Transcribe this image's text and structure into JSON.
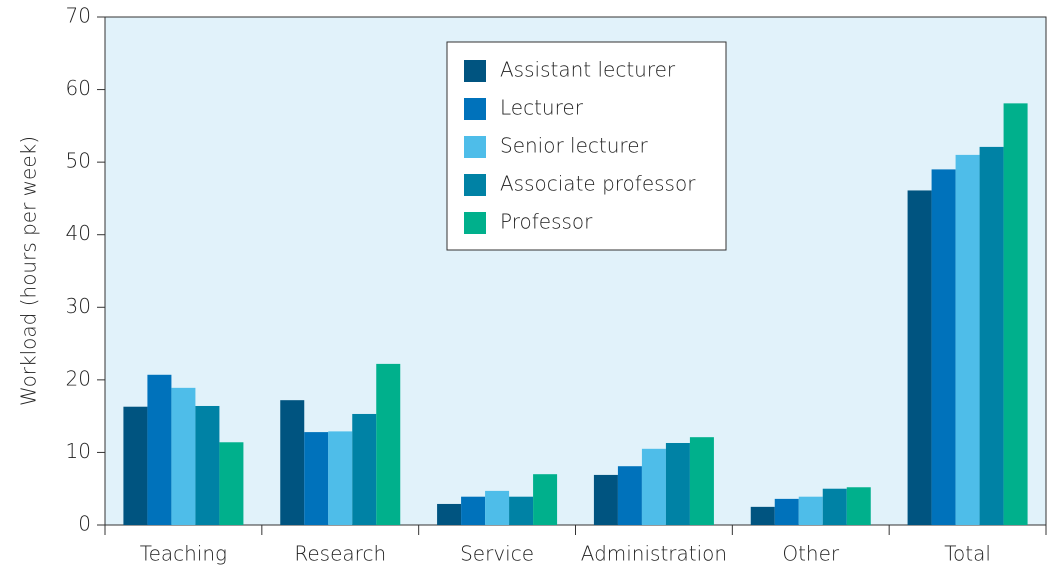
{
  "chart_data": {
    "type": "bar",
    "ylabel": "Workload (hours per week)",
    "categories": [
      "Teaching",
      "Research",
      "Service",
      "Administration",
      "Other",
      "Total"
    ],
    "series": [
      {
        "name": "Assistant lecturer",
        "color": "#005480",
        "values": [
          16.3,
          17.2,
          2.9,
          6.9,
          2.5,
          46.1
        ]
      },
      {
        "name": "Lecturer",
        "color": "#0072bb",
        "values": [
          20.7,
          12.8,
          3.9,
          8.1,
          3.6,
          49.0
        ]
      },
      {
        "name": "Senior lecturer",
        "color": "#4ebde9",
        "values": [
          18.9,
          12.9,
          4.7,
          10.5,
          3.9,
          51.0
        ]
      },
      {
        "name": "Associate professor",
        "color": "#0082a5",
        "values": [
          16.4,
          15.3,
          3.9,
          11.3,
          5.0,
          52.1
        ]
      },
      {
        "name": "Professor",
        "color": "#00b08c",
        "values": [
          11.4,
          22.2,
          7.0,
          12.1,
          5.2,
          58.1
        ]
      }
    ],
    "ylim": [
      0,
      70
    ],
    "yticks": [
      0,
      10,
      20,
      30,
      40,
      50,
      60,
      70
    ],
    "legend": "top-center"
  }
}
